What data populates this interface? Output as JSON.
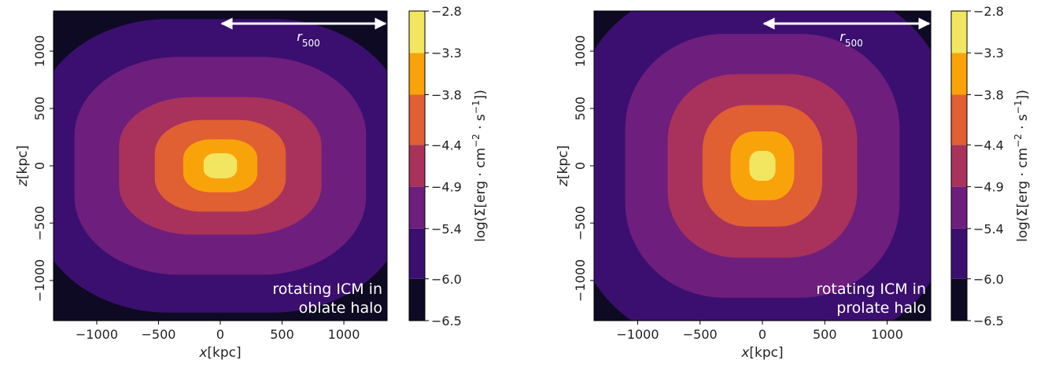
{
  "chart_data": [
    {
      "type": "heatmap",
      "xlabel": "x[kpc]",
      "ylabel": "z[kpc]",
      "xlim": [
        -1350,
        1350
      ],
      "ylim": [
        -1350,
        1350
      ],
      "xticks": [
        -1000,
        -500,
        0,
        500,
        1000
      ],
      "yticks": [
        -1000,
        -500,
        0,
        500,
        1000
      ],
      "xtick_labels": [
        "−1000",
        "−500",
        "0",
        "500",
        "1000"
      ],
      "ytick_labels": [
        "−1000",
        "−500",
        "0",
        "500",
        "1000"
      ],
      "annotation": [
        "rotating ICM in",
        "oblate halo"
      ],
      "arrow_label": "r500",
      "arrow_x": [
        0,
        1350
      ],
      "arrow_y": 1240,
      "colorbar": {
        "label": "log(Σ[erg · cm−2 · s−1])",
        "levels": [
          -6.5,
          -6.0,
          -5.4,
          -4.9,
          -4.4,
          -3.8,
          -3.3,
          -2.8
        ],
        "tick_labels": [
          "−6.5",
          "−6.0",
          "−5.4",
          "−4.9",
          "−4.4",
          "−3.8",
          "−3.3",
          "−2.8"
        ],
        "colors": [
          "#0e0a23",
          "#3b0f6f",
          "#6e1e7c",
          "#a8325b",
          "#e05f33",
          "#f9a30b",
          "#f2e661"
        ]
      },
      "contours": [
        {
          "level": -6.0,
          "rx": 1500,
          "rz": 1280
        },
        {
          "level": -5.4,
          "rx": 1180,
          "rz": 950
        },
        {
          "level": -4.9,
          "rx": 820,
          "rz": 600
        },
        {
          "level": -4.4,
          "rx": 530,
          "rz": 400
        },
        {
          "level": -3.8,
          "rx": 300,
          "rz": 230
        },
        {
          "level": -3.3,
          "rx": 135,
          "rz": 110
        }
      ]
    },
    {
      "type": "heatmap",
      "xlabel": "x[kpc]",
      "ylabel": "z[kpc]",
      "xlim": [
        -1350,
        1350
      ],
      "ylim": [
        -1350,
        1350
      ],
      "xticks": [
        -1000,
        -500,
        0,
        500,
        1000
      ],
      "yticks": [
        -1000,
        -500,
        0,
        500,
        1000
      ],
      "xtick_labels": [
        "−1000",
        "−500",
        "0",
        "500",
        "1000"
      ],
      "ytick_labels": [
        "−1000",
        "−500",
        "0",
        "500",
        "1000"
      ],
      "annotation": [
        "rotating ICM in",
        "prolate halo"
      ],
      "arrow_label": "r500",
      "arrow_x": [
        0,
        1350
      ],
      "arrow_y": 1240,
      "colorbar": {
        "label": "log(Σ[erg · cm−2 · s−1])",
        "levels": [
          -6.5,
          -6.0,
          -5.4,
          -4.9,
          -4.4,
          -3.8,
          -3.3,
          -2.8
        ],
        "tick_labels": [
          "−6.5",
          "−6.0",
          "−5.4",
          "−4.9",
          "−4.4",
          "−3.8",
          "−3.3",
          "−2.8"
        ],
        "colors": [
          "#0e0a23",
          "#3b0f6f",
          "#6e1e7c",
          "#a8325b",
          "#e05f33",
          "#f9a30b",
          "#f2e661"
        ]
      },
      "contours": [
        {
          "level": -6.0,
          "rx": 1500,
          "rz": 1560
        },
        {
          "level": -5.4,
          "rx": 1100,
          "rz": 1150
        },
        {
          "level": -4.9,
          "rx": 760,
          "rz": 800
        },
        {
          "level": -4.4,
          "rx": 480,
          "rz": 530
        },
        {
          "level": -3.8,
          "rx": 255,
          "rz": 300
        },
        {
          "level": -3.3,
          "rx": 105,
          "rz": 130
        }
      ]
    }
  ]
}
